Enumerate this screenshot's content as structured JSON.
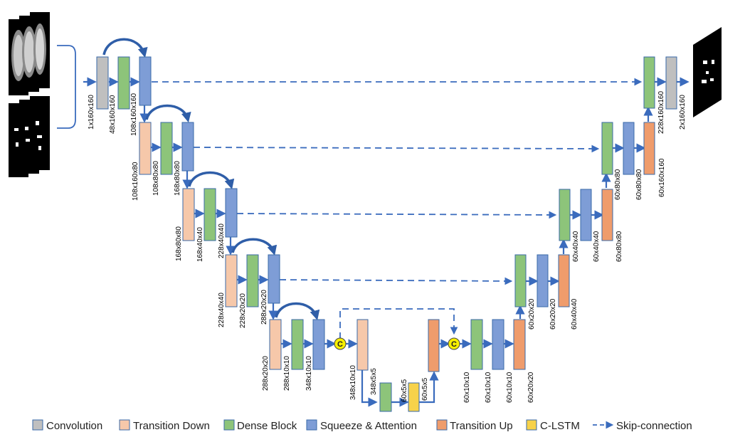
{
  "colors": {
    "convolution": "#bfbfbf",
    "transition_down": "#f6c8aa",
    "dense_block": "#8dc47a",
    "squeeze_attention": "#7e9dd6",
    "transition_up": "#ef9c6c",
    "clstm": "#f7d24a",
    "arrow": "#3a6bbd",
    "concat_fill": "#f7f000"
  },
  "concat_symbol": "C",
  "dims": {
    "in_conv": "1x160x160",
    "enc1_dense": "48x160x160",
    "enc1_sa": "108x160x160",
    "enc2_td": "108x160x80",
    "enc2_dense": "108x80x80",
    "enc2_sa": "168x80x80",
    "enc3_td": "168x80x80",
    "enc3_dense": "168x40x40",
    "enc3_sa": "228x40x40",
    "enc4_td": "228x40x40",
    "enc4_dense": "228x20x20",
    "enc4_sa": "288x20x20",
    "enc5_td": "288x20x20",
    "enc5_dense": "288x10x10",
    "enc5_sa": "348x10x10",
    "bot_td": "348x10x10",
    "bot_td2": "348x5x5",
    "bot_clstm": "60x5x5",
    "bot_tu": "60x5x5",
    "dec5_dense": "60x10x10",
    "dec5_sa": "60x10x10",
    "dec5_sa2": "60x10x10",
    "dec5_tu": "60x20x20",
    "dec4_dense": "60x20x20",
    "dec4_sa": "60x20x20",
    "dec4_tu": "60x40x40",
    "dec3_dense": "60x40x40",
    "dec3_sa": "60x40x40",
    "dec3_tu": "60x80x80",
    "dec2_dense": "60x80x80",
    "dec2_sa": "60x80x80",
    "dec2_tu": "60x160x160",
    "dec1_dense": "228x160x160",
    "out_conv": "2x160x160"
  },
  "legend": [
    {
      "label": "Convolution",
      "color": "#bfbfbf"
    },
    {
      "label": "Transition Down",
      "color": "#f6c8aa"
    },
    {
      "label": "Dense Block",
      "color": "#8dc47a"
    },
    {
      "label": "Squeeze & Attention",
      "color": "#7e9dd6"
    },
    {
      "label": "Transition Up",
      "color": "#ef9c6c"
    },
    {
      "label": "C-LSTM",
      "color": "#f7d24a"
    },
    {
      "label": "Skip-connection",
      "color": "#3a6bbd"
    }
  ]
}
